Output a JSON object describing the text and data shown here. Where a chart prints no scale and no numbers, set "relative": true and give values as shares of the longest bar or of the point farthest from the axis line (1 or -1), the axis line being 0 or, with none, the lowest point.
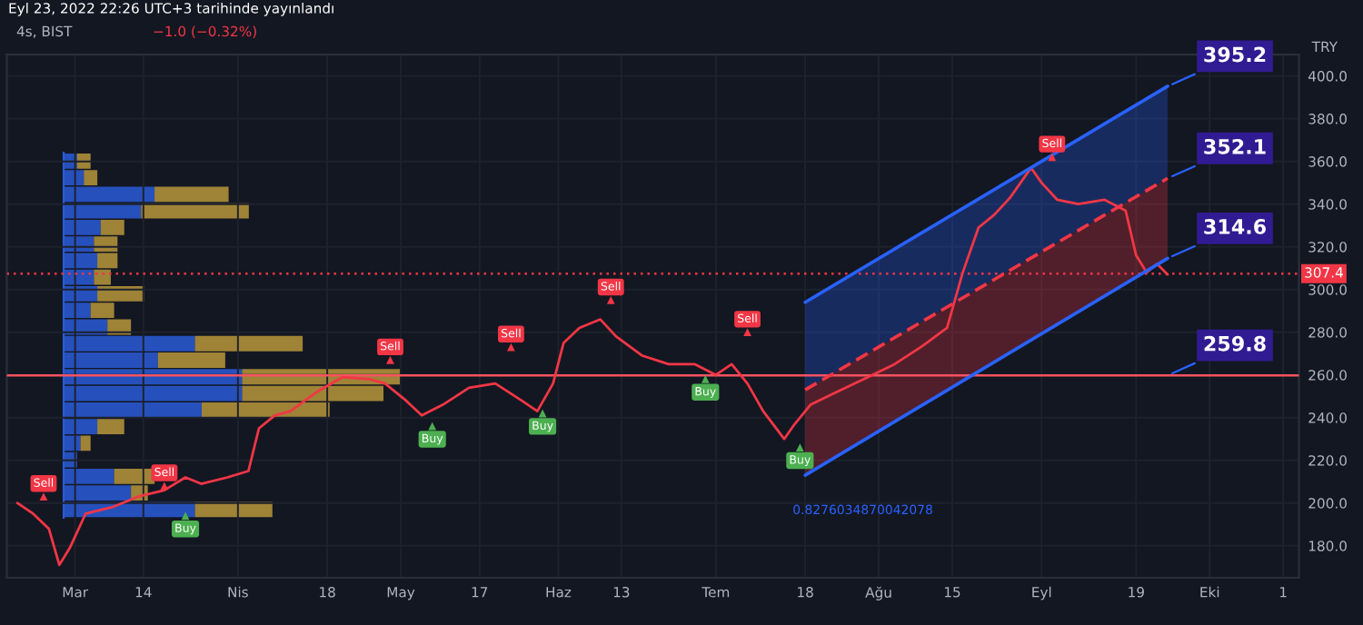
{
  "chart_data": [
    {
      "type": "line",
      "title": "4s, BIST",
      "subtitle": "Eyl 23, 2022 22:26 UTC+3 tarihinde yayınlandı",
      "ylabel": "TRY",
      "annotations": [
        "−1.0 (−0.32%)",
        "0.8276034870042078"
      ],
      "series": [
        {
          "type": "line",
          "color": "#f23645",
          "x": [
            "2022-02-18",
            "2022-02-21",
            "2022-02-24",
            "2022-02-26",
            "2022-02-28",
            "2022-03-03",
            "2022-03-08",
            "2022-03-13",
            "2022-03-18",
            "2022-03-22",
            "2022-03-25",
            "2022-03-30",
            "2022-04-03",
            "2022-04-05",
            "2022-04-08",
            "2022-04-11",
            "2022-04-16",
            "2022-04-21",
            "2022-04-26",
            "2022-04-29",
            "2022-05-03",
            "2022-05-06",
            "2022-05-10",
            "2022-05-15",
            "2022-05-20",
            "2022-05-25",
            "2022-05-28",
            "2022-05-31",
            "2022-06-02",
            "2022-06-05",
            "2022-06-09",
            "2022-06-12",
            "2022-06-17",
            "2022-06-22",
            "2022-06-27",
            "2022-07-01",
            "2022-07-04",
            "2022-07-07",
            "2022-07-10",
            "2022-07-14",
            "2022-07-16",
            "2022-07-19",
            "2022-07-24",
            "2022-07-30",
            "2022-08-04",
            "2022-08-09",
            "2022-08-14",
            "2022-08-17",
            "2022-08-20",
            "2022-08-23",
            "2022-08-26",
            "2022-08-30",
            "2022-09-01",
            "2022-09-04",
            "2022-09-08",
            "2022-09-13",
            "2022-09-17",
            "2022-09-19",
            "2022-09-21",
            "2022-09-23",
            "2022-09-25"
          ],
          "values": [
            200,
            195,
            188,
            171,
            179,
            195,
            198,
            203,
            206,
            212,
            209,
            212,
            215,
            235,
            241,
            243,
            252,
            259,
            258,
            256,
            248,
            241,
            246,
            254,
            256,
            248,
            243,
            256,
            275,
            282,
            286,
            278,
            269,
            265,
            265,
            260,
            265,
            256,
            243,
            230,
            237,
            246,
            252,
            259,
            265,
            273,
            282,
            308,
            329,
            335,
            343,
            357,
            350,
            342,
            340,
            342,
            337,
            316,
            308,
            312,
            307
          ]
        },
        {
          "type": "line",
          "color": "#2962ff",
          "x": [
            "2022-07-18",
            "2022-09-25"
          ],
          "values": [
            294,
            395.2
          ],
          "value_labels": [
            null,
            "395.2"
          ],
          "line_style": "solid",
          "lower": [
            253,
            352.1
          ],
          "upper": [
            294,
            395.2
          ]
        },
        {
          "type": "line",
          "color": "#f23645",
          "x": [
            "2022-07-18",
            "2022-09-25"
          ],
          "values": [
            253,
            352.1
          ],
          "value_labels": [
            null,
            "352.1"
          ],
          "line_style": "dashed",
          "lower": [
            213,
            314.6
          ],
          "upper": [
            253,
            352.1
          ]
        },
        {
          "type": "line",
          "color": "#2962ff",
          "x": [
            "2022-07-18",
            "2022-09-25"
          ],
          "values": [
            213,
            314.6
          ],
          "value_labels": [
            null,
            "314.6"
          ],
          "line_style": "solid"
        },
        {
          "type": "scatter",
          "color": "#f23645",
          "marker": "triangle",
          "x": [
            "2022-02-23",
            "2022-03-18",
            "2022-04-30",
            "2022-05-23",
            "2022-06-11",
            "2022-07-07",
            "2022-09-03"
          ],
          "values": [
            203,
            208,
            267,
            273,
            295,
            280,
            362
          ],
          "value_labels": [
            "Sell",
            "Sell",
            "Sell",
            "Sell",
            "Sell",
            "Sell",
            "Sell"
          ]
        },
        {
          "type": "scatter",
          "color": "#4caf50",
          "marker": "triangle",
          "x": [
            "2022-03-22",
            "2022-05-08",
            "2022-05-29",
            "2022-06-29",
            "2022-07-17"
          ],
          "values": [
            194,
            236,
            242,
            258,
            226
          ],
          "value_labels": [
            "Buy",
            "Buy",
            "Buy",
            "Buy",
            "Buy"
          ]
        }
      ],
      "ref_lines": [
        {
          "axis": "y",
          "value": 259.8,
          "label": "259.8",
          "color": "#f7525f",
          "line_style": "solid"
        },
        {
          "axis": "y",
          "value": 307.4,
          "label": "307.4",
          "color": "#f23645",
          "line_style": "dotted"
        }
      ],
      "xlim": [
        "2022-02-16",
        "2022-10-20"
      ],
      "xticks": [
        {
          "value": "2022-03-01",
          "label": "Mar"
        },
        {
          "value": "2022-03-14",
          "label": "14"
        },
        {
          "value": "2022-04-01",
          "label": "Nis"
        },
        {
          "value": "2022-04-18",
          "label": "18"
        },
        {
          "value": "2022-05-02",
          "label": "May"
        },
        {
          "value": "2022-05-17",
          "label": "17"
        },
        {
          "value": "2022-06-01",
          "label": "Haz"
        },
        {
          "value": "2022-06-13",
          "label": "13"
        },
        {
          "value": "2022-07-01",
          "label": "Tem"
        },
        {
          "value": "2022-07-18",
          "label": "18"
        },
        {
          "value": "2022-08-01",
          "label": "Ağu"
        },
        {
          "value": "2022-08-15",
          "label": "15"
        },
        {
          "value": "2022-09-01",
          "label": "Eyl"
        },
        {
          "value": "2022-09-19",
          "label": "19"
        },
        {
          "value": "2022-10-03",
          "label": "Eki"
        },
        {
          "value": "2022-10-17",
          "label": "1"
        }
      ],
      "ylim": [
        165,
        410
      ],
      "yticks": [
        {
          "value": 180,
          "label": "180.0"
        },
        {
          "value": 200,
          "label": "200.0"
        },
        {
          "value": 220,
          "label": "220.0"
        },
        {
          "value": 240,
          "label": "240.0"
        },
        {
          "value": 260,
          "label": "260.0"
        },
        {
          "value": 280,
          "label": "280.0"
        },
        {
          "value": 300,
          "label": "300.0"
        },
        {
          "value": 320,
          "label": "320.0"
        },
        {
          "value": 340,
          "label": "340.0"
        },
        {
          "value": 360,
          "label": "360.0"
        },
        {
          "value": 380,
          "label": "380.0"
        },
        {
          "value": 400,
          "label": "400.0"
        }
      ],
      "grid": true,
      "legend": false
    },
    {
      "type": "bar",
      "orientation": "horizontal",
      "stacked": true,
      "relative": true,
      "legend": false,
      "categories": [
        null,
        null,
        null,
        null,
        null,
        null,
        null,
        null,
        null,
        null,
        null,
        null,
        null,
        null,
        null,
        null,
        null,
        null,
        null,
        null,
        null,
        null
      ],
      "series": [
        {
          "color": "#2a5bd7",
          "values": [
            0.04,
            0.06,
            0.27,
            0.23,
            0.11,
            0.09,
            0.1,
            0.09,
            0.1,
            0.08,
            0.13,
            0.39,
            0.28,
            0.53,
            0.53,
            0.41,
            0.1,
            0.05,
            0.04,
            0.15,
            0.2,
            0.39
          ]
        },
        {
          "color": "#b8973a",
          "values": [
            0.04,
            0.04,
            0.22,
            0.32,
            0.07,
            0.07,
            0.06,
            0.05,
            0.14,
            0.07,
            0.07,
            0.32,
            0.2,
            0.47,
            0.42,
            0.38,
            0.08,
            0.03,
            0,
            0.12,
            0.05,
            0.23
          ]
        }
      ]
    }
  ]
}
